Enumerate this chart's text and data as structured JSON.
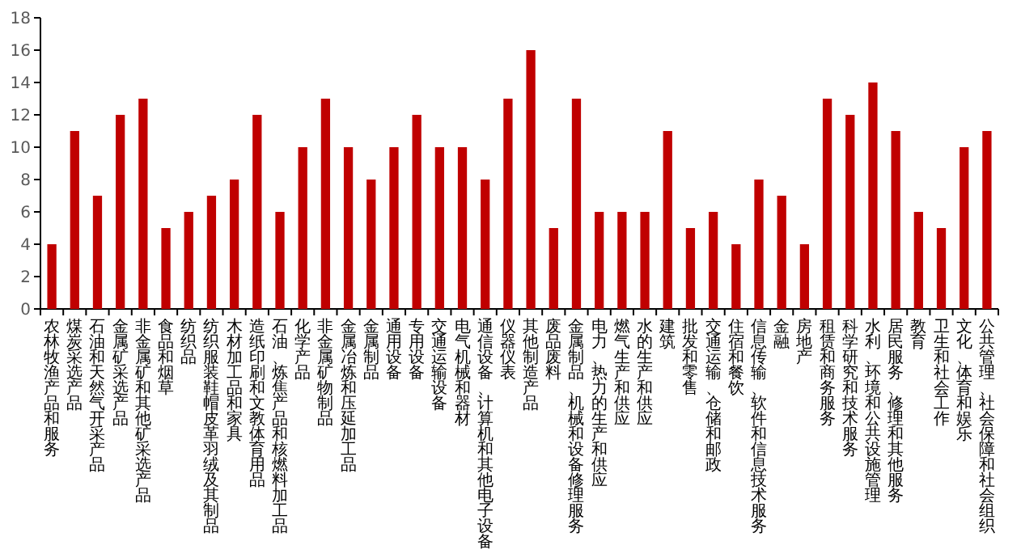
{
  "chart_data": {
    "type": "bar",
    "color": "#c00000",
    "ylim": [
      0,
      18
    ],
    "yticks": [
      0,
      2,
      4,
      6,
      8,
      10,
      12,
      14,
      16,
      18
    ],
    "categories": [
      "农林牧渔产品和服务",
      "煤炭采选产品",
      "石油和天然气开采产品",
      "金属矿采选产品",
      "非金属矿和其他矿采选产品",
      "食品和烟草",
      "纺织品",
      "纺织服装鞋帽皮革羽绒及其制品",
      "木材加工品和家具",
      "造纸印刷和文教体育用品",
      "石油、炼焦产品和核燃料加工品",
      "化学产品",
      "非金属矿物制品",
      "金属冶炼和压延加工品",
      "金属制品",
      "通用设备",
      "专用设备",
      "交通运输设备",
      "电气机械和器材",
      "通信设备、计算机和其他电子设备",
      "仪器仪表",
      "其他制造产品",
      "废品废料",
      "金属制品、机械和设备修理服务",
      "电力、热力的生产和供应",
      "燃气生产和供应",
      "水的生产和供应",
      "建筑",
      "批发和零售",
      "交通运输、仓储和邮政",
      "住宿和餐饮",
      "信息传输、软件和信息技术服务",
      "金融",
      "房地产",
      "租赁和商务服务",
      "科学研究和技术服务",
      "水利、环境和公共设施管理",
      "居民服务、修理和其他服务",
      "教育",
      "卫生和社会工作",
      "文化、体育和娱乐",
      "公共管理、社会保障和社会组织"
    ],
    "values": [
      4,
      11,
      7,
      12,
      13,
      5,
      6,
      7,
      8,
      12,
      6,
      10,
      13,
      10,
      8,
      10,
      12,
      10,
      10,
      8,
      13,
      16,
      5,
      13,
      6,
      6,
      6,
      11,
      5,
      6,
      4,
      8,
      7,
      4,
      13,
      12,
      14,
      11,
      6,
      5,
      10,
      11
    ]
  }
}
